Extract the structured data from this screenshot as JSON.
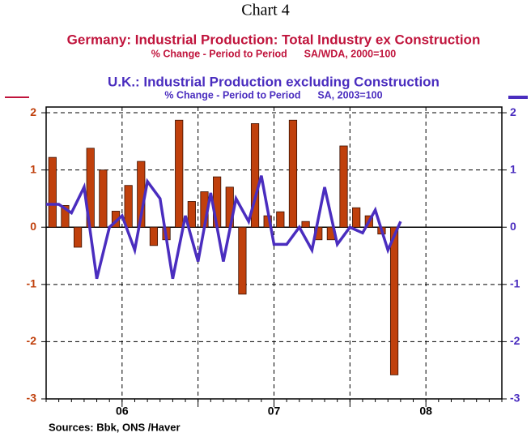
{
  "chart_data": {
    "type": "bar_line",
    "title": "Chart 4",
    "series": [
      {
        "name": "Germany: Industrial Production: Total Industry ex Construction",
        "subtitle": "% Change - Period to Period      SA/WDA, 2000=100",
        "type": "bar",
        "color": "#c0400c",
        "x": [
          0.5,
          1.5,
          2.5,
          3.5,
          4.5,
          5.5,
          6.5,
          7.5,
          8.5,
          9.5,
          10.5,
          11.5,
          12.5,
          13.5,
          14.5,
          15.5,
          16.5,
          17.5,
          18.5,
          19.5,
          20.5,
          21.5,
          22.5,
          23.5,
          24.5,
          25.5,
          26.5,
          27.5
        ],
        "values": [
          1.22,
          0.38,
          -0.35,
          1.38,
          1.0,
          0.28,
          0.73,
          1.15,
          -0.32,
          -0.22,
          1.87,
          0.45,
          0.62,
          0.88,
          0.7,
          -1.17,
          1.81,
          0.2,
          0.27,
          1.87,
          0.1,
          -0.22,
          -0.22,
          1.42,
          0.34,
          0.2,
          -0.12,
          -2.58
        ]
      },
      {
        "name": "U.K.: Industrial Production excluding Construction",
        "subtitle": "% Change - Period to Period      SA, 2003=100",
        "type": "line",
        "color": "#4a2dbf",
        "x": [
          0,
          1,
          2,
          3,
          4,
          5,
          6,
          7,
          8,
          9,
          10,
          11,
          12,
          13,
          14,
          15,
          16,
          17,
          18,
          19,
          20,
          21,
          22,
          23,
          24,
          25,
          26,
          27,
          28
        ],
        "values": [
          0.4,
          0.4,
          0.25,
          0.7,
          -0.9,
          0.0,
          0.2,
          -0.4,
          0.8,
          0.5,
          -0.9,
          0.2,
          -0.6,
          0.6,
          -0.6,
          0.5,
          0.1,
          0.9,
          -0.3,
          -0.3,
          0.0,
          -0.4,
          0.7,
          -0.3,
          0.0,
          -0.1,
          0.3,
          -0.4,
          0.1
        ]
      }
    ],
    "xlim": [
      0,
      36
    ],
    "xgrid": [
      6,
      12,
      18,
      24,
      30
    ],
    "year_labels": [
      {
        "value": 6,
        "label": "06"
      },
      {
        "value": 18,
        "label": "07"
      },
      {
        "value": 30,
        "label": "08"
      }
    ],
    "ylim": [
      -3,
      2.1
    ],
    "yticks": [
      -3,
      -2,
      -1,
      0,
      1,
      2
    ],
    "grid": true,
    "source": "Sources:  Bbk, ONS /Haver"
  }
}
